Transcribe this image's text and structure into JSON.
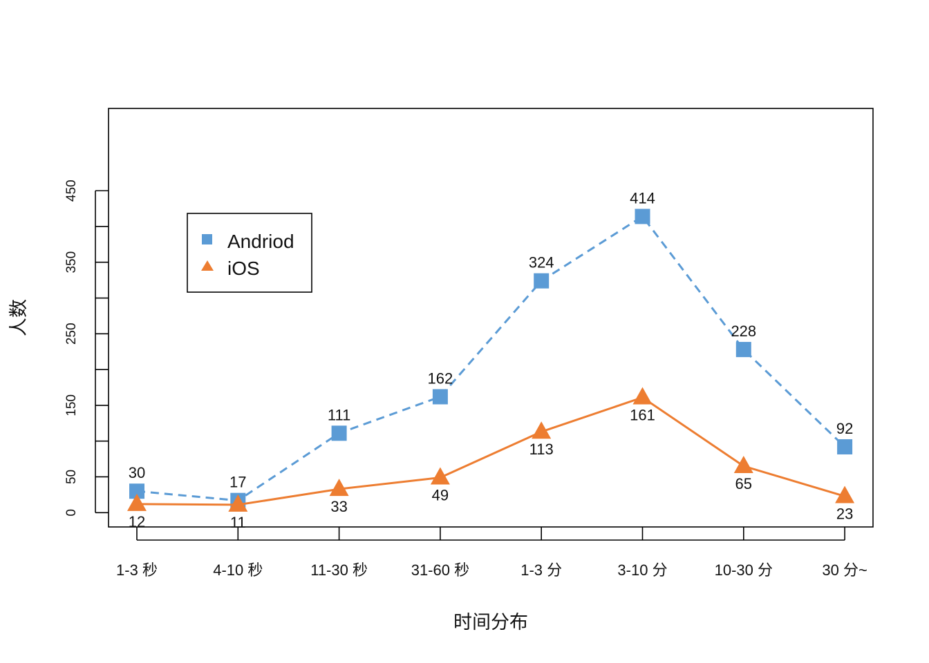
{
  "chart_data": {
    "type": "line",
    "xlabel": "时间分布",
    "ylabel": "人数",
    "categories": [
      "1-3 秒",
      "4-10 秒",
      "11-30 秒",
      "31-60 秒",
      "1-3 分",
      "3-10 分",
      "10-30 分",
      "30 分~"
    ],
    "ylim": [
      -20,
      565
    ],
    "yticks": [
      0,
      50,
      100,
      150,
      200,
      250,
      300,
      350,
      400,
      450
    ],
    "ytick_labels": [
      "0",
      "50",
      "",
      "150",
      "",
      "250",
      "",
      "350",
      "",
      "450"
    ],
    "grid": false,
    "legend_position": "top-left",
    "series": [
      {
        "name": "Andriod",
        "values": [
          30,
          17,
          111,
          162,
          324,
          414,
          228,
          92
        ],
        "color": "#5B9BD5",
        "line_style": "dashed",
        "marker": "square",
        "label_position": "above"
      },
      {
        "name": "iOS",
        "values": [
          12,
          11,
          33,
          49,
          113,
          161,
          65,
          23
        ],
        "color": "#ED7D31",
        "line_style": "solid",
        "marker": "triangle",
        "label_position": "below"
      }
    ]
  }
}
